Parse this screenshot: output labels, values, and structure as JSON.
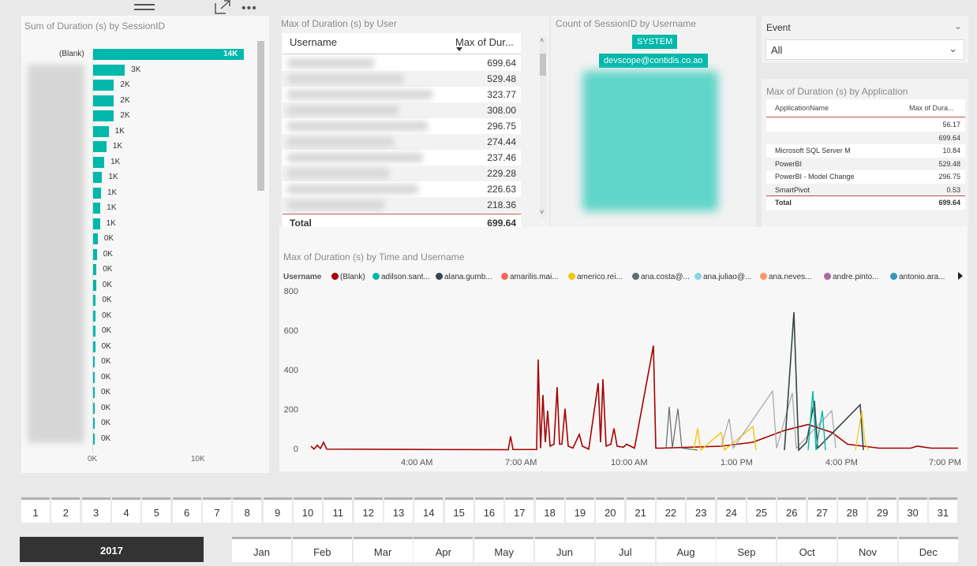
{
  "panel_sessions": {
    "title": "Sum of Duration (s) by SessionID",
    "first_label": "(Blank)",
    "bar_labels": [
      "14K",
      "3K",
      "2K",
      "2K",
      "2K",
      "1K",
      "1K",
      "1K",
      "1K",
      "1K",
      "1K",
      "1K",
      "0K",
      "0K",
      "0K",
      "0K",
      "0K",
      "0K",
      "0K",
      "0K",
      "0K",
      "0K",
      "0K",
      "0K",
      "0K",
      "0K"
    ],
    "bar_values": [
      14000,
      3000,
      2000,
      2000,
      2000,
      1500,
      1300,
      1100,
      900,
      800,
      750,
      700,
      500,
      420,
      380,
      350,
      320,
      300,
      280,
      260,
      240,
      220,
      200,
      180,
      160,
      140
    ],
    "x_ticks": [
      "0K",
      "10K"
    ]
  },
  "panel_users": {
    "title": "Max of Duration (s) by User",
    "col_username": "Username",
    "col_max": "Max of Dur...",
    "values": [
      "699.64",
      "529.48",
      "323.77",
      "308.00",
      "296.75",
      "274.44",
      "237.46",
      "229.28",
      "226.63",
      "218.36"
    ],
    "total_label": "Total",
    "total_value": "699.64"
  },
  "panel_count": {
    "title": "Count of SessionID by Username",
    "badge1": "SYSTEM",
    "badge2": "devscope@contidis.co.ao"
  },
  "slicer_event": {
    "label": "Event",
    "value": "All"
  },
  "panel_apps": {
    "title": "Max of Duration (s) by Application",
    "col_app": "ApplicationName",
    "col_max": "Max of Dura...",
    "rows": [
      {
        "name": "",
        "value": "56.17"
      },
      {
        "name": "",
        "value": "699.64"
      },
      {
        "name": "Microsoft SQL Server M",
        "value": "10.84"
      },
      {
        "name": "PowerBI",
        "value": "529.48"
      },
      {
        "name": "PowerBI - Model Change",
        "value": "296.75"
      },
      {
        "name": "SmartPivot",
        "value": "0.53"
      }
    ],
    "total_label": "Total",
    "total_value": "699.64"
  },
  "panel_time": {
    "title": "Max of Duration (s) by Time and Username",
    "legend_title": "Username",
    "legend": [
      {
        "name": "(Blank)",
        "color": "#a80000"
      },
      {
        "name": "adilson.sant...",
        "color": "#01b8aa"
      },
      {
        "name": "alana.gumb...",
        "color": "#374649"
      },
      {
        "name": "amarilis.mai...",
        "color": "#fd625e"
      },
      {
        "name": "americo.rei...",
        "color": "#f2c80f"
      },
      {
        "name": "ana.costa@...",
        "color": "#5f6b6d"
      },
      {
        "name": "ana.juliao@...",
        "color": "#8ad4eb"
      },
      {
        "name": "ana.neves...",
        "color": "#fe9666"
      },
      {
        "name": "andre.pinto...",
        "color": "#a66999"
      },
      {
        "name": "antonio.ara...",
        "color": "#3599b8"
      }
    ],
    "y_ticks": [
      "800",
      "600",
      "400",
      "200",
      "0"
    ],
    "x_ticks": [
      "4:00 AM",
      "7:00 AM",
      "10:00 AM",
      "1:00 PM",
      "4:00 PM",
      "7:00 PM"
    ]
  },
  "days": [
    "1",
    "2",
    "3",
    "4",
    "5",
    "6",
    "7",
    "8",
    "9",
    "10",
    "11",
    "12",
    "13",
    "14",
    "15",
    "16",
    "17",
    "18",
    "19",
    "20",
    "21",
    "22",
    "23",
    "24",
    "25",
    "26",
    "27",
    "28",
    "29",
    "30",
    "31"
  ],
  "year": "2017",
  "months": [
    "Jan",
    "Feb",
    "Mar",
    "Apr",
    "May",
    "Jun",
    "Jul",
    "Aug",
    "Sep",
    "Oct",
    "Nov",
    "Dec"
  ]
}
